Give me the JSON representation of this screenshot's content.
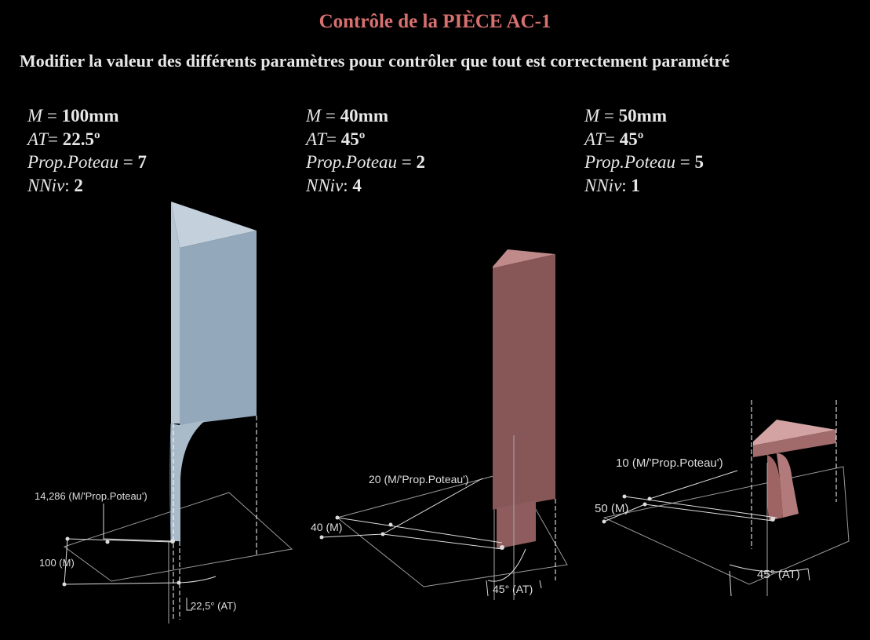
{
  "title": "Contrôle de la PIÈCE AC-1",
  "subtitle": "Modifier la valeur des différents paramètres pour contrôler que tout est correctement paramétré",
  "param_labels": {
    "m": "M",
    "at": "AT",
    "prop": "Prop.Poteau",
    "nniv": "NNiv"
  },
  "cases": [
    {
      "m_value": "100mm",
      "at_value": "22.5º",
      "prop_value": "7",
      "nniv_value": "2",
      "dim_prop": "14,286 (M/'Prop.Poteau')",
      "dim_m": "100 (M)",
      "dim_at": "22,5° (AT)",
      "color": "#a3b6c7"
    },
    {
      "m_value": "40mm",
      "at_value": "45º",
      "prop_value": "2",
      "nniv_value": "4",
      "dim_prop": "20 (M/'Prop.Poteau')",
      "dim_m": "40 (M)",
      "dim_at": "45° (AT)",
      "color": "#8b5a5a"
    },
    {
      "m_value": "50mm",
      "at_value": "45º",
      "prop_value": "5",
      "nniv_value": "1",
      "dim_prop": "10 (M/'Prop.Poteau')",
      "dim_m": "50 (M)",
      "dim_at": "45° (AT)",
      "color": "#9a6464"
    }
  ],
  "colors": {
    "title": "#d97070",
    "background": "#000000",
    "text": "#e8e8e8"
  }
}
